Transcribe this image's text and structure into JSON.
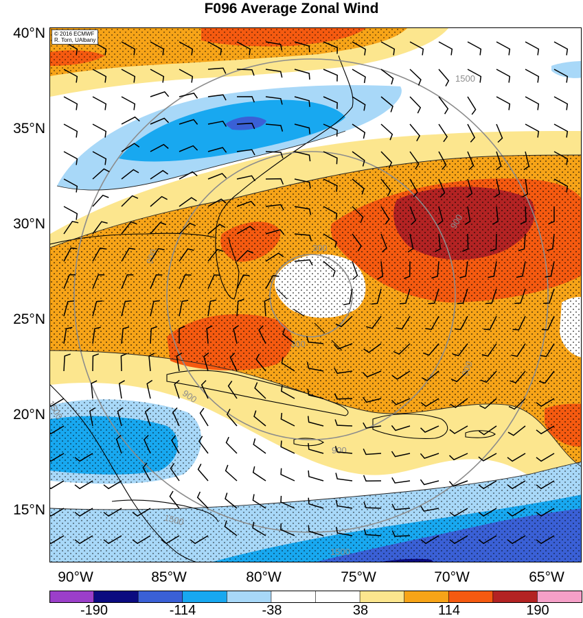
{
  "title": "F096 Average Zonal Wind",
  "credit": {
    "line1": "© 2016 ECMWF",
    "line2": "R. Torn, UAlbany"
  },
  "lat_labels": [
    "40°N",
    "35°N",
    "30°N",
    "25°N",
    "20°N",
    "15°N"
  ],
  "lon_labels": [
    "90°W",
    "85°W",
    "80°W",
    "75°W",
    "70°W",
    "65°W"
  ],
  "contour_labels": [
    "1500",
    "900",
    "900",
    "300",
    "300",
    "900",
    "900",
    "900",
    "1500",
    "1500",
    "1500"
  ],
  "colorbar": {
    "labels": [
      "-190",
      "-114",
      "-38",
      "38",
      "114",
      "190"
    ],
    "colors": [
      "#9b3fc9",
      "#0b0b80",
      "#3a60d6",
      "#18a8f0",
      "#a8d8f8",
      "#ffffff",
      "#ffffff",
      "#fce68e",
      "#f7a418",
      "#f55a10",
      "#b32323",
      "#f5a0c8"
    ]
  },
  "colors": {
    "dark_red": "#b32323",
    "red_orange": "#f55a10",
    "orange": "#f7a418",
    "yellow": "#fce68e",
    "light_blue": "#a8d8f8",
    "blue": "#18a8f0",
    "royal_blue": "#3a60d6",
    "navy": "#0b0b80",
    "contour_gray": "#8c8c8c"
  }
}
